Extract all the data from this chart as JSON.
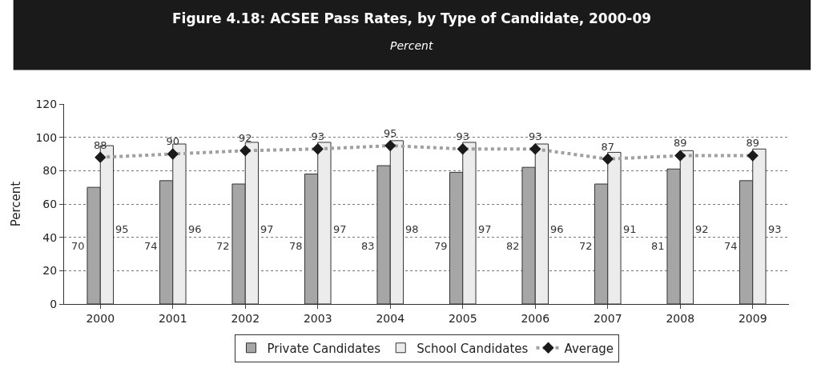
{
  "chart_data": {
    "type": "bar",
    "title": "Figure 4.18: ACSEE Pass Rates, by Type of Candidate, 2000-09",
    "subtitle": "Percent",
    "ylabel": "Percent",
    "categories": [
      "2000",
      "2001",
      "2002",
      "2003",
      "2004",
      "2005",
      "2006",
      "2007",
      "2008",
      "2009"
    ],
    "series": [
      {
        "name": "Private Candidates",
        "color": "#a6a6a6",
        "values": [
          70,
          74,
          72,
          78,
          83,
          79,
          82,
          72,
          81,
          74
        ]
      },
      {
        "name": "School Candidates",
        "color": "#ececec",
        "values": [
          95,
          96,
          97,
          97,
          98,
          97,
          96,
          91,
          92,
          93
        ]
      },
      {
        "name": "Average",
        "type": "line",
        "color": "#a0a0a0",
        "marker": "diamond",
        "line_style": "dotted",
        "values": [
          88,
          90,
          92,
          93,
          95,
          93,
          93,
          87,
          89,
          89
        ]
      }
    ],
    "ylim": [
      0,
      120
    ],
    "yticks": [
      0,
      20,
      40,
      60,
      80,
      100,
      120
    ],
    "grid": "y",
    "legend": "bottom",
    "data_labels": true
  }
}
